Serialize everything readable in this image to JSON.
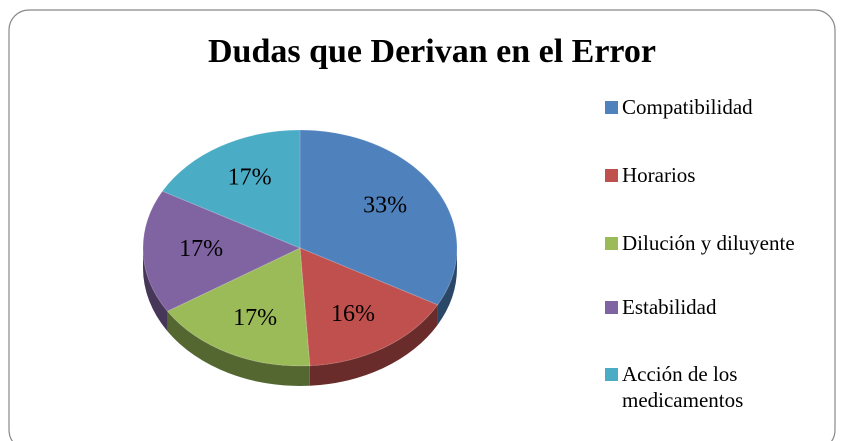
{
  "chart_data": {
    "type": "pie",
    "title": "Dudas que Derivan en el Error",
    "categories": [
      "Compatibilidad",
      "Horarios",
      "Dilución y diluyente",
      "Estabilidad",
      "Acción de los medicamentos"
    ],
    "values": [
      33,
      16,
      17,
      17,
      17
    ],
    "value_labels": [
      "33%",
      "16%",
      "17%",
      "17%",
      "17%"
    ],
    "colors": [
      "#4f81bd",
      "#c0504d",
      "#9bbb59",
      "#8064a2",
      "#4bacc6"
    ],
    "legend": "right"
  }
}
